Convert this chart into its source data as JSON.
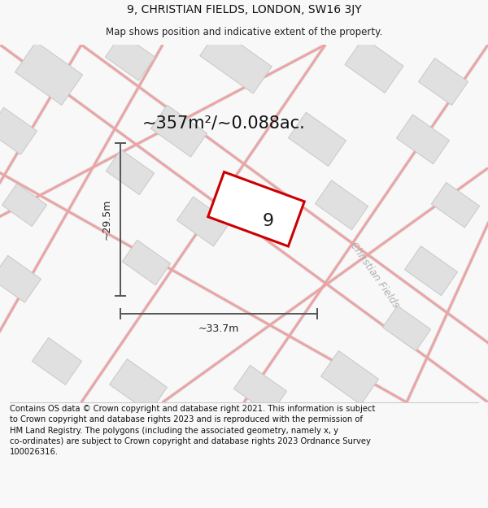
{
  "title_line1": "9, CHRISTIAN FIELDS, LONDON, SW16 3JY",
  "title_line2": "Map shows position and indicative extent of the property.",
  "area_text": "~357m²/~0.088ac.",
  "dim_width": "~33.7m",
  "dim_height": "~29.5m",
  "property_number": "9",
  "street_name": "Christian Fields",
  "footer_text": "Contains OS data © Crown copyright and database right 2021. This information is subject\nto Crown copyright and database rights 2023 and is reproduced with the permission of\nHM Land Registry. The polygons (including the associated geometry, namely x, y\nco-ordinates) are subject to Crown copyright and database rights 2023 Ordnance Survey\n100026316.",
  "bg_color": "#f8f8f8",
  "map_bg": "#f8f8f8",
  "building_color": "#e0e0e0",
  "building_edge": "#c8c8c8",
  "road_line_color": "#f0a0a0",
  "road_outline_color": "#d8d8d8",
  "property_fill": "#ffffff",
  "property_edge": "#cc0000",
  "dim_line_color": "#555555",
  "title_fontsize": 10,
  "subtitle_fontsize": 8.5,
  "area_fontsize": 15,
  "property_num_fontsize": 16,
  "street_fontsize": 9,
  "footer_fontsize": 7.2
}
